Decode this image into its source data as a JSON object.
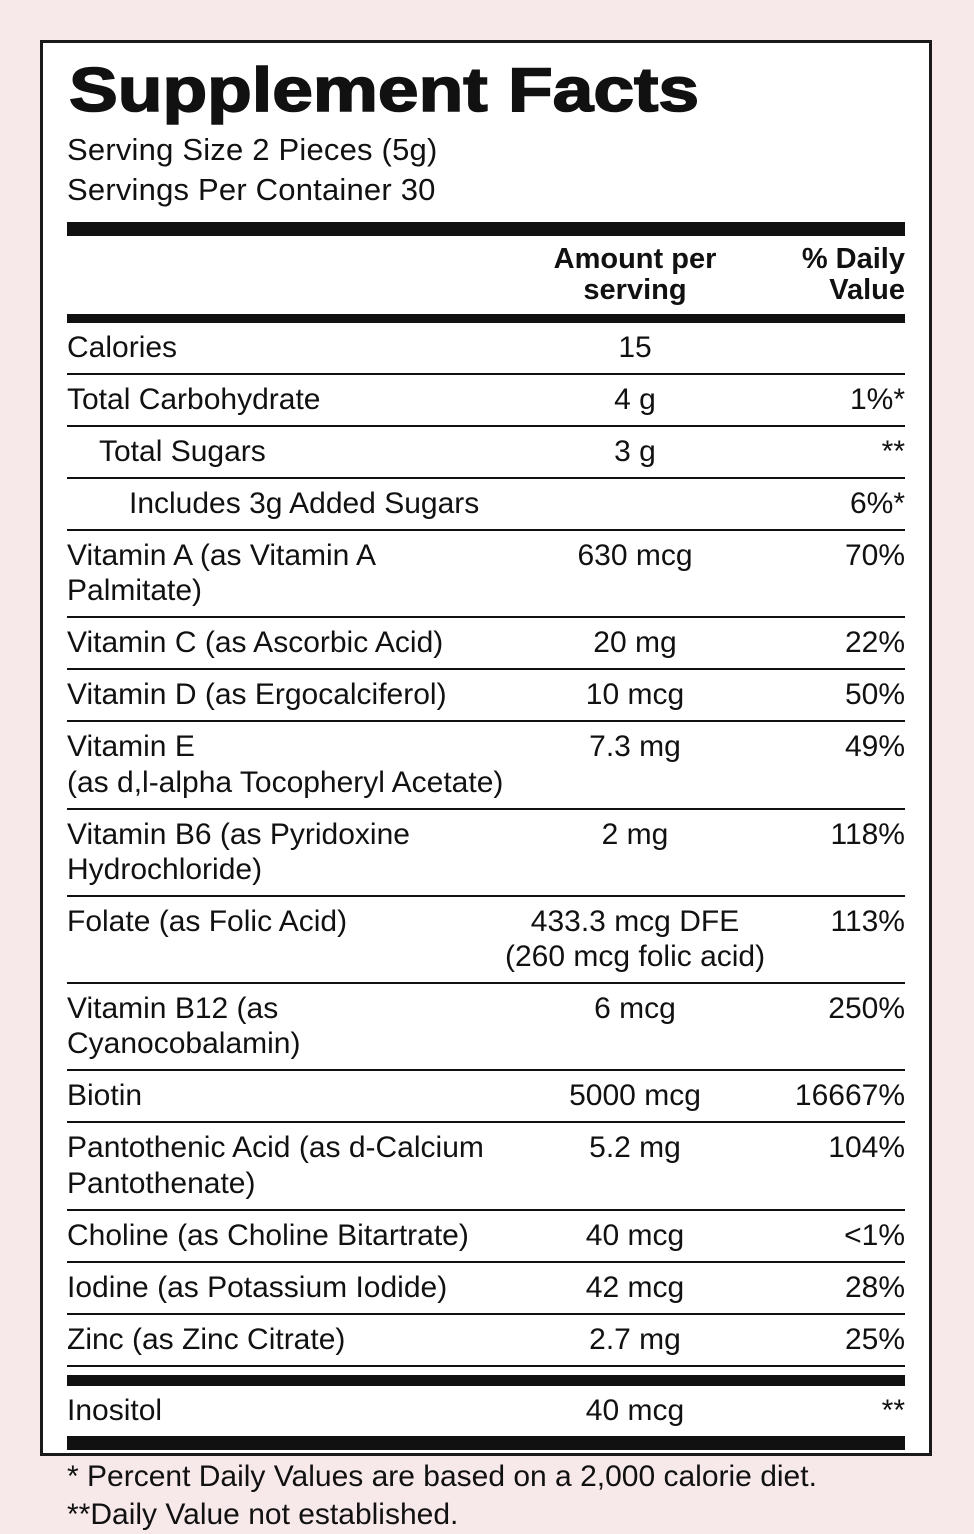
{
  "colors": {
    "background": "#f7e8ea",
    "panel": "#ffffff",
    "text": "#111111",
    "rules": "#111111"
  },
  "label": {
    "title": "Supplement Facts",
    "serving_size": "Serving Size 2 Pieces (5g)",
    "servings_per_container": "Servings Per Container 30"
  },
  "header": {
    "amount": [
      "Amount per",
      "serving"
    ],
    "dv": [
      "% Daily",
      "Value"
    ]
  },
  "rows": [
    {
      "name": "Calories",
      "amount": "15",
      "dv": ""
    },
    {
      "name": "Total Carbohydrate",
      "amount": "4 g",
      "dv": "1%*"
    },
    {
      "name": "Total Sugars",
      "amount": "3 g",
      "dv": "**"
    },
    {
      "name": "Includes 3g Added Sugars",
      "amount": "",
      "dv": "6%*"
    },
    {
      "name": "Vitamin A (as Vitamin A Palmitate)",
      "amount": "630 mcg",
      "dv": "70%"
    },
    {
      "name": "Vitamin C (as Ascorbic Acid)",
      "amount": "20 mg",
      "dv": "22%"
    },
    {
      "name": "Vitamin D (as Ergocalciferol)",
      "amount": "10 mcg",
      "dv": "50%"
    },
    {
      "name": "Vitamin E",
      "name2": "(as d,l-alpha Tocopheryl Acetate)",
      "amount": "7.3 mg",
      "dv": "49%"
    },
    {
      "name": "Vitamin B6 (as Pyridoxine Hydrochloride)",
      "amount": "2 mg",
      "dv": "118%"
    },
    {
      "name": "Folate (as Folic Acid)",
      "amount": "433.3 mcg DFE",
      "amount2": "(260 mcg folic acid)",
      "dv": "113%"
    },
    {
      "name": "Vitamin B12 (as Cyanocobalamin)",
      "amount": "6 mcg",
      "dv": "250%"
    },
    {
      "name": "Biotin",
      "amount": "5000 mcg",
      "dv": "16667%"
    },
    {
      "name": "Pantothenic Acid (as d-Calcium",
      "name2": "Pantothenate)",
      "amount": "5.2 mg",
      "dv": "104%"
    },
    {
      "name": "Choline (as Choline Bitartrate)",
      "amount": "40 mcg",
      "dv": "<1%"
    },
    {
      "name": "Iodine (as Potassium Iodide)",
      "amount": "42 mcg",
      "dv": "28%"
    },
    {
      "name": "Zinc (as Zinc Citrate)",
      "amount": "2.7 mg",
      "dv": "25%"
    },
    {
      "name": "Inositol",
      "amount": "40 mcg",
      "dv": "**"
    }
  ],
  "footnotes": [
    "* Percent Daily Values are based on a 2,000 calorie diet.",
    "**Daily Value not established."
  ]
}
